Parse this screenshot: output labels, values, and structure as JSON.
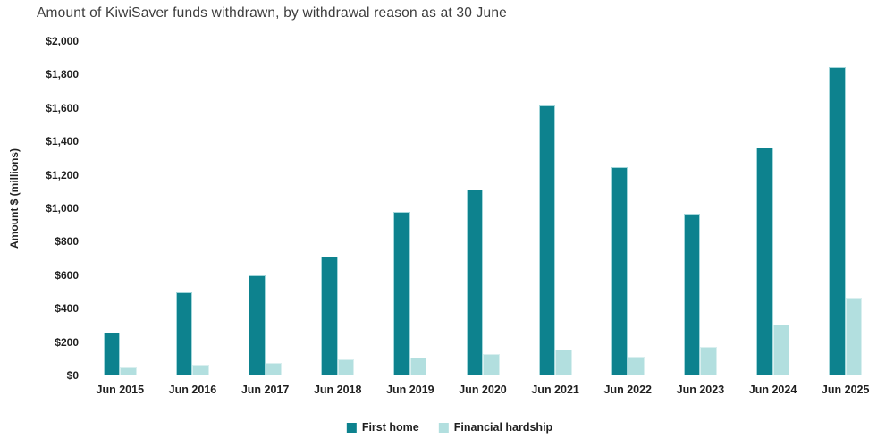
{
  "chart_data": {
    "type": "bar",
    "title": "Amount of KiwiSaver funds withdrawn, by withdrawal reason as at 30 June",
    "xlabel": "",
    "ylabel": "Amount $ (millions)",
    "categories": [
      "Jun 2015",
      "Jun 2016",
      "Jun 2017",
      "Jun 2018",
      "Jun 2019",
      "Jun 2020",
      "Jun 2021",
      "Jun 2022",
      "Jun 2023",
      "Jun 2024",
      "Jun 2025"
    ],
    "series": [
      {
        "name": "First home",
        "color": "#0d828e",
        "border_color": "#a3d6da",
        "values": [
          258,
          495,
          600,
          710,
          978,
          1110,
          1615,
          1248,
          970,
          1365,
          1845
        ]
      },
      {
        "name": "Financial hardship",
        "color": "#b2dfdf",
        "border_color": "#d9efef",
        "values": [
          46,
          64,
          75,
          97,
          108,
          126,
          155,
          110,
          173,
          303,
          465
        ]
      }
    ],
    "ylim": [
      0,
      2000
    ],
    "ytick_step": 200,
    "ytick_prefix": "$",
    "grid": false,
    "legend_position": "bottom"
  }
}
